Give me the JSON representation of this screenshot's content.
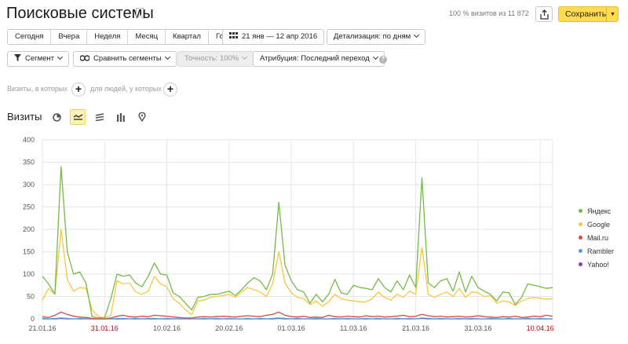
{
  "header": {
    "title": "Поисковые системы",
    "visits_info": "100 % визитов из 11 872",
    "save_label": "Сохранить"
  },
  "periods": [
    "Сегодня",
    "Вчера",
    "Неделя",
    "Месяц",
    "Квартал",
    "Год"
  ],
  "date_range": "21 янв — 12 апр 2016",
  "detail": "Детализация: по дням",
  "segment": "Сегмент",
  "compare": "Сравнить сегменты",
  "accuracy": "Точность: 100%",
  "attribution": "Атрибуция: Последний переход",
  "filters": {
    "visits_label": "Визиты, в которых",
    "people_label": "для людей, у которых"
  },
  "metric_title": "Визиты",
  "view_icons": [
    "pie-chart-icon",
    "line-chart-icon",
    "stacked-area-icon",
    "bar-chart-icon",
    "map-pin-icon"
  ],
  "colors": {
    "accent": "#ffdb4d",
    "yandex": "#77b94a",
    "google": "#f5c842",
    "mailru": "#d9473c",
    "rambler": "#4c9ee0",
    "yahoo": "#8e3aa8",
    "weekend": "#cc0000"
  },
  "chart_data": {
    "type": "line",
    "ylim": [
      0,
      400
    ],
    "yticks": [
      "400",
      "350",
      "300",
      "250",
      "200",
      "150",
      "100",
      "50",
      "0"
    ],
    "xlabels": [
      {
        "text": "21.01.16",
        "day": 0,
        "weekend": false
      },
      {
        "text": "31.01.16",
        "day": 10,
        "weekend": true
      },
      {
        "text": "10.02.16",
        "day": 20,
        "weekend": false
      },
      {
        "text": "20.02.16",
        "day": 30,
        "weekend": false
      },
      {
        "text": "01.03.16",
        "day": 40,
        "weekend": false
      },
      {
        "text": "11.03.16",
        "day": 50,
        "weekend": false
      },
      {
        "text": "21.03.16",
        "day": 60,
        "weekend": false
      },
      {
        "text": "31.03.16",
        "day": 70,
        "weekend": false
      },
      {
        "text": "10.04.16",
        "day": 80,
        "weekend": true
      }
    ],
    "legend": [
      "Яндекс",
      "Google",
      "Mail.ru",
      "Rambler",
      "Yahoo!"
    ],
    "series": [
      {
        "name": "Яндекс",
        "color": "#77b94a",
        "values": [
          95,
          78,
          55,
          340,
          150,
          100,
          105,
          80,
          5,
          2,
          3,
          45,
          100,
          95,
          98,
          80,
          72,
          95,
          125,
          100,
          98,
          58,
          50,
          35,
          20,
          48,
          50,
          55,
          55,
          58,
          62,
          52,
          65,
          80,
          92,
          85,
          65,
          100,
          260,
          120,
          85,
          65,
          60,
          35,
          55,
          38,
          55,
          88,
          58,
          55,
          75,
          70,
          68,
          65,
          90,
          70,
          60,
          85,
          65,
          98,
          70,
          315,
          80,
          70,
          85,
          90,
          62,
          105,
          60,
          95,
          70,
          62,
          55,
          40,
          60,
          58,
          32,
          48,
          78,
          75,
          72,
          68,
          70
        ]
      },
      {
        "name": "Google",
        "color": "#f5c842",
        "values": [
          42,
          68,
          55,
          200,
          88,
          62,
          70,
          68,
          20,
          5,
          2,
          8,
          85,
          78,
          80,
          60,
          55,
          62,
          95,
          78,
          72,
          45,
          35,
          20,
          10,
          40,
          42,
          48,
          50,
          52,
          55,
          48,
          60,
          70,
          65,
          60,
          50,
          78,
          150,
          80,
          58,
          48,
          45,
          32,
          40,
          28,
          38,
          55,
          45,
          42,
          40,
          38,
          38,
          45,
          60,
          48,
          42,
          55,
          48,
          62,
          55,
          160,
          55,
          48,
          55,
          60,
          50,
          68,
          48,
          60,
          58,
          50,
          52,
          35,
          40,
          38,
          30,
          40,
          45,
          48,
          46,
          44,
          45
        ]
      },
      {
        "name": "Mail.ru",
        "color": "#d9473c",
        "values": [
          5,
          3,
          8,
          15,
          10,
          6,
          4,
          3,
          1,
          0,
          0,
          2,
          6,
          8,
          5,
          4,
          6,
          5,
          8,
          7,
          6,
          4,
          3,
          2,
          2,
          4,
          5,
          4,
          5,
          6,
          5,
          4,
          6,
          7,
          6,
          5,
          8,
          10,
          15,
          8,
          5,
          4,
          6,
          3,
          4,
          3,
          8,
          5,
          4,
          6,
          5,
          4,
          7,
          5,
          6,
          4,
          5,
          6,
          8,
          5,
          6,
          10,
          7,
          5,
          6,
          4,
          5,
          6,
          4,
          5,
          7,
          5,
          4,
          3,
          5,
          4,
          6,
          3,
          4,
          6,
          5,
          8,
          6
        ]
      },
      {
        "name": "Rambler",
        "color": "#4c9ee0",
        "values": [
          1,
          0,
          1,
          2,
          1,
          0,
          1,
          0,
          0,
          0,
          0,
          0,
          1,
          1,
          0,
          1,
          0,
          1,
          1,
          0,
          1,
          0,
          0,
          0,
          0,
          0,
          1,
          0,
          1,
          0,
          1,
          0,
          0,
          1,
          0,
          1,
          0,
          1,
          2,
          1,
          0,
          1,
          0,
          0,
          1,
          0,
          0,
          1,
          0,
          1,
          0,
          0,
          1,
          0,
          1,
          0,
          0,
          1,
          0,
          1,
          0,
          2,
          1,
          0,
          1,
          0,
          0,
          1,
          0,
          1,
          0,
          0,
          1,
          0,
          0,
          1,
          0,
          0,
          1,
          0,
          1,
          0,
          0
        ]
      },
      {
        "name": "Yahoo!",
        "color": "#8e3aa8",
        "values": [
          0,
          0,
          0,
          1,
          0,
          0,
          0,
          0,
          0,
          0,
          0,
          0,
          0,
          0,
          0,
          0,
          0,
          0,
          0,
          0,
          0,
          0,
          0,
          0,
          0,
          0,
          0,
          0,
          0,
          0,
          0,
          0,
          0,
          0,
          0,
          0,
          0,
          0,
          1,
          0,
          0,
          0,
          0,
          0,
          0,
          0,
          0,
          0,
          0,
          0,
          0,
          0,
          0,
          0,
          0,
          0,
          0,
          0,
          0,
          0,
          0,
          1,
          0,
          0,
          0,
          0,
          0,
          0,
          0,
          0,
          0,
          0,
          0,
          0,
          0,
          0,
          0,
          0,
          0,
          0,
          0,
          0,
          0
        ]
      }
    ]
  }
}
